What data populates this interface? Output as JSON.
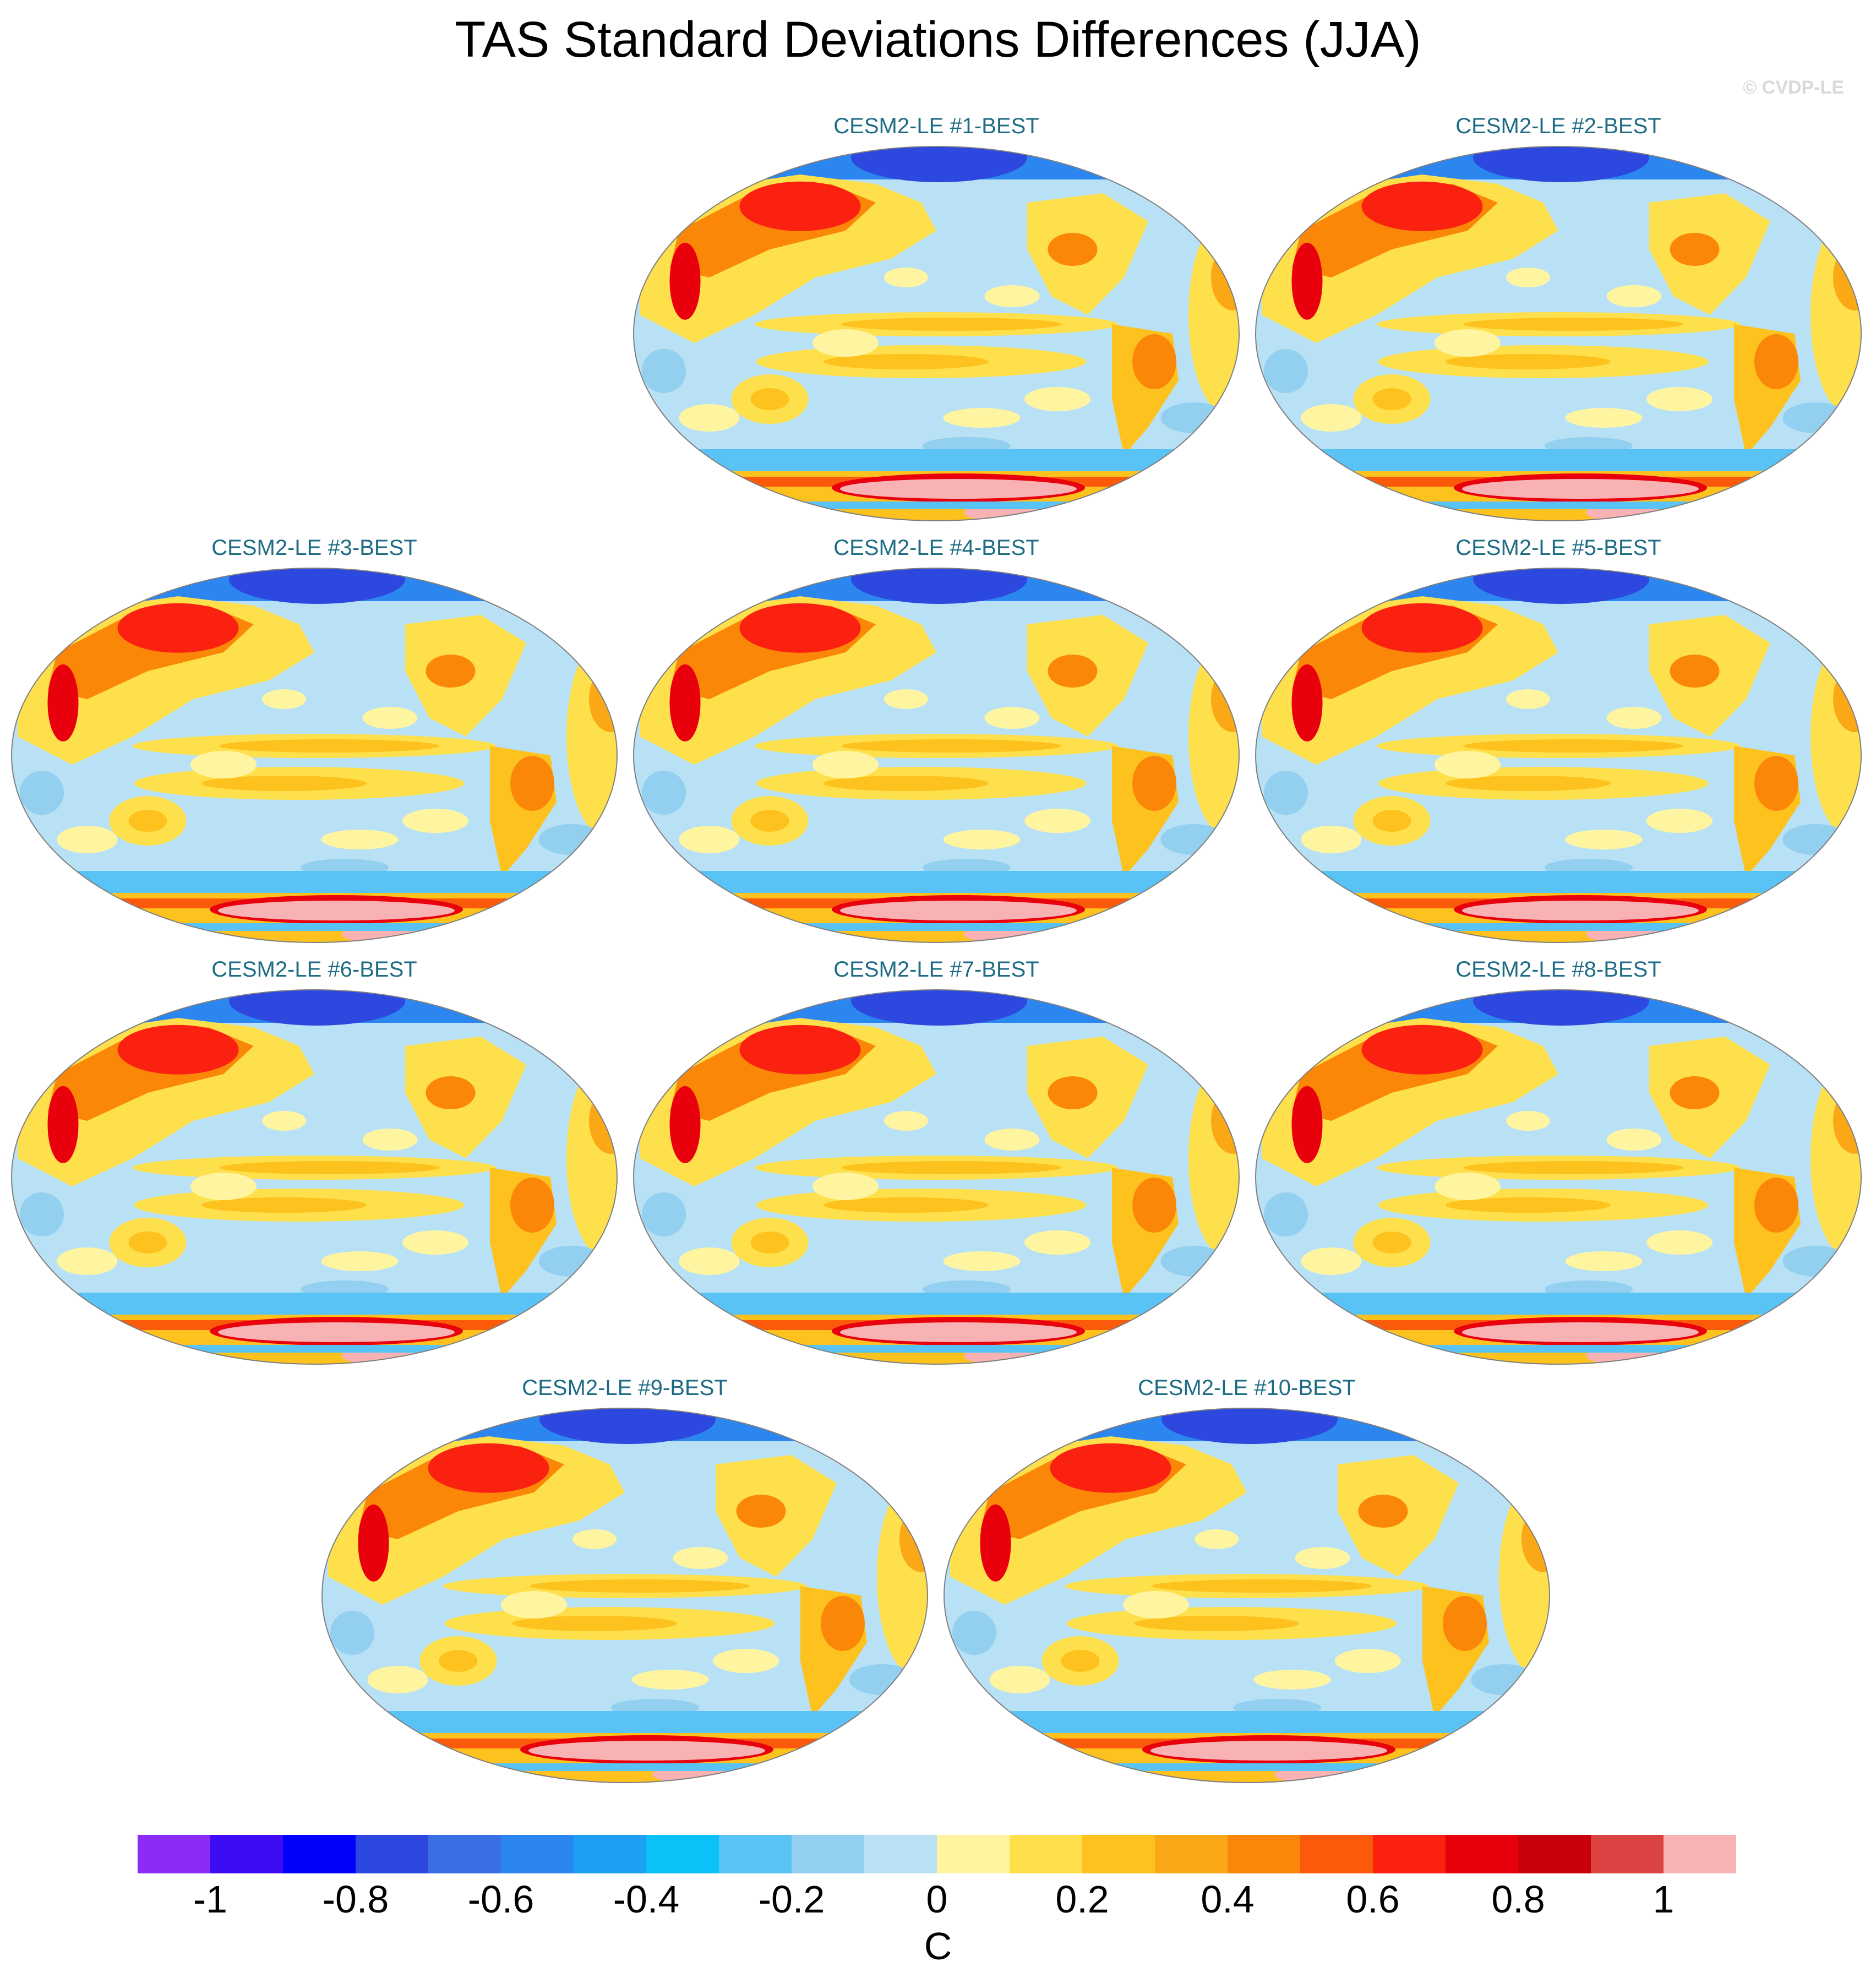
{
  "title": "TAS Standard Deviations Differences (JJA)",
  "credit": "© CVDP-LE",
  "panels": [
    {
      "id": 1,
      "label": "CESM2-LE #1-BEST"
    },
    {
      "id": 2,
      "label": "CESM2-LE #2-BEST"
    },
    {
      "id": 3,
      "label": "CESM2-LE #3-BEST"
    },
    {
      "id": 4,
      "label": "CESM2-LE #4-BEST"
    },
    {
      "id": 5,
      "label": "CESM2-LE #5-BEST"
    },
    {
      "id": 6,
      "label": "CESM2-LE #6-BEST"
    },
    {
      "id": 7,
      "label": "CESM2-LE #7-BEST"
    },
    {
      "id": 8,
      "label": "CESM2-LE #8-BEST"
    },
    {
      "id": 9,
      "label": "CESM2-LE #9-BEST"
    },
    {
      "id": 10,
      "label": "CESM2-LE #10-BEST"
    }
  ],
  "colorbar": {
    "colors": [
      "#8b2bf3",
      "#3d0cf5",
      "#0000fb",
      "#2c48de",
      "#3a6fe3",
      "#2c86f0",
      "#1ea0f2",
      "#0cc0f8",
      "#58c3f4",
      "#93cfef",
      "#b9e1f6",
      "#fff5a0",
      "#fee04c",
      "#fdc21e",
      "#fba817",
      "#fb8709",
      "#fb5a0b",
      "#fb2110",
      "#e8000c",
      "#c7000c",
      "#db4343",
      "#f9b2b4"
    ],
    "tick_labels": [
      "-1",
      "-0.8",
      "-0.6",
      "-0.4",
      "-0.2",
      "0",
      "0.2",
      "0.4",
      "0.6",
      "0.8",
      "1"
    ],
    "units": "C"
  }
}
